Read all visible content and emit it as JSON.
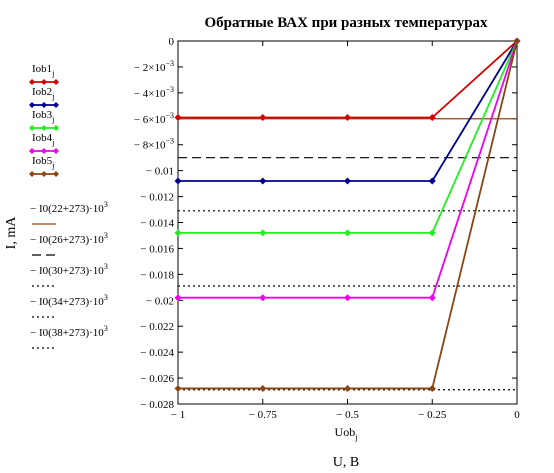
{
  "chart_data": {
    "type": "line",
    "title": "Обратные ВАХ при разных температурах",
    "xlabel": "U, B",
    "x_var_label": "Uob",
    "x_var_sub": "j",
    "ylabel": "I, mA",
    "xlim": [
      -1,
      0
    ],
    "ylim": [
      -0.028,
      0
    ],
    "x_ticks": [
      {
        "value": -1,
        "label": "− 1"
      },
      {
        "value": -0.75,
        "label": "− 0.75"
      },
      {
        "value": -0.5,
        "label": "− 0.5"
      },
      {
        "value": -0.25,
        "label": "− 0.25"
      },
      {
        "value": 0,
        "label": "0"
      }
    ],
    "y_ticks": [
      {
        "value": 0,
        "label": "0",
        "exp": ""
      },
      {
        "value": -0.002,
        "label": "− 2×10",
        "exp": "−3"
      },
      {
        "value": -0.004,
        "label": "− 4×10",
        "exp": "−3"
      },
      {
        "value": -0.006,
        "label": "− 6×10",
        "exp": "−3"
      },
      {
        "value": -0.008,
        "label": "− 8×10",
        "exp": "−3"
      },
      {
        "value": -0.01,
        "label": "− 0.01",
        "exp": ""
      },
      {
        "value": -0.012,
        "label": "− 0.012",
        "exp": ""
      },
      {
        "value": -0.014,
        "label": "− 0.014",
        "exp": ""
      },
      {
        "value": -0.016,
        "label": "− 0.016",
        "exp": ""
      },
      {
        "value": -0.018,
        "label": "− 0.018",
        "exp": ""
      },
      {
        "value": -0.02,
        "label": "− 0.02",
        "exp": ""
      },
      {
        "value": -0.022,
        "label": "− 0.022",
        "exp": ""
      },
      {
        "value": -0.024,
        "label": "− 0.024",
        "exp": ""
      },
      {
        "value": -0.026,
        "label": "− 0.026",
        "exp": ""
      },
      {
        "value": -0.028,
        "label": "− 0.028",
        "exp": ""
      }
    ],
    "x": [
      -1,
      -0.75,
      -0.5,
      -0.25,
      0
    ],
    "series": [
      {
        "name": "Iob1",
        "sub": "j",
        "color": "#d40000",
        "style": "solid-marker",
        "values": [
          -0.0059,
          -0.0059,
          -0.0059,
          -0.0059,
          0
        ]
      },
      {
        "name": "Iob2",
        "sub": "j",
        "color": "#00008b",
        "style": "solid-marker",
        "values": [
          -0.0108,
          -0.0108,
          -0.0108,
          -0.0108,
          0
        ]
      },
      {
        "name": "Iob3",
        "sub": "j",
        "color": "#22ee22",
        "style": "solid-marker",
        "values": [
          -0.0148,
          -0.0148,
          -0.0148,
          -0.0148,
          0
        ]
      },
      {
        "name": "Iob4",
        "sub": "j",
        "color": "#ee00ee",
        "style": "solid-marker",
        "values": [
          -0.0198,
          -0.0198,
          -0.0198,
          -0.0198,
          0
        ]
      },
      {
        "name": "Iob5",
        "sub": "j",
        "color": "#8b4513",
        "style": "solid-marker",
        "values": [
          -0.0268,
          -0.0268,
          -0.0268,
          -0.0268,
          0
        ]
      }
    ],
    "reference_lines": [
      {
        "name": "− I0(22+273)·10",
        "exp": "3",
        "color": "#8b4513",
        "style": "solid",
        "value": -0.006
      },
      {
        "name": "− I0(26+273)·10",
        "exp": "3",
        "color": "#000000",
        "style": "dashed",
        "value": -0.009
      },
      {
        "name": "− I0(30+273)·10",
        "exp": "3",
        "color": "#000000",
        "style": "dotted",
        "value": -0.0131
      },
      {
        "name": "− I0(34+273)·10",
        "exp": "3",
        "color": "#000000",
        "style": "dotted",
        "value": -0.0189
      },
      {
        "name": "− I0(38+273)·10",
        "exp": "3",
        "color": "#000000",
        "style": "dotted",
        "value": -0.0269
      }
    ]
  }
}
